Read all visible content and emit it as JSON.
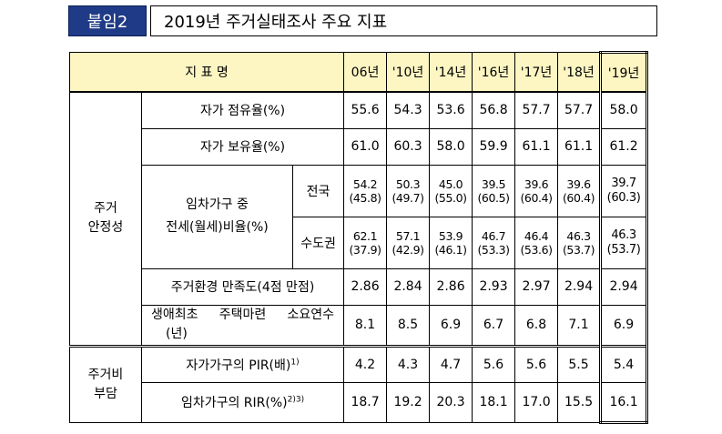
{
  "header": {
    "badge": "붙임2",
    "title": "2019년 주거실태조사 주요 지표"
  },
  "table": {
    "head_label": "지 표 명",
    "years": [
      "06년",
      "'10년",
      "'14년",
      "'16년",
      "'17년",
      "'18년",
      "'19년"
    ],
    "groups": {
      "stability": "주거\n안정성",
      "burden": "주거비\n부담"
    },
    "rows": {
      "own_occupancy": {
        "label": "자가 점유율(%)",
        "values": [
          "55.6",
          "54.3",
          "53.6",
          "56.8",
          "57.7",
          "57.7",
          "58.0"
        ]
      },
      "own_possession": {
        "label": "자가 보유율(%)",
        "values": [
          "61.0",
          "60.3",
          "58.0",
          "59.9",
          "61.1",
          "61.1",
          "61.2"
        ]
      },
      "rent_ratio": {
        "label_line1": "임차가구 중",
        "label_line2": "전세(월세)비율(%)",
        "national": {
          "label": "전국",
          "top": [
            "54.2",
            "50.3",
            "45.0",
            "39.5",
            "39.6",
            "39.6",
            "39.7"
          ],
          "bottom": [
            "(45.8)",
            "(49.7)",
            "(55.0)",
            "(60.5)",
            "(60.4)",
            "(60.4)",
            "(60.3)"
          ]
        },
        "capital": {
          "label": "수도권",
          "top": [
            "62.1",
            "57.1",
            "53.9",
            "46.7",
            "46.4",
            "46.3",
            "46.3"
          ],
          "bottom": [
            "(37.9)",
            "(42.9)",
            "(46.1)",
            "(53.3)",
            "(53.6)",
            "(53.7)",
            "(53.7)"
          ]
        }
      },
      "satisfaction": {
        "label": "주거환경 만족도(4점 만점)",
        "values": [
          "2.86",
          "2.84",
          "2.86",
          "2.93",
          "2.97",
          "2.94",
          "2.94"
        ]
      },
      "first_home": {
        "label_line1": "생애최초 주택마련 소요연수",
        "label_line2": "(년)",
        "values": [
          "8.1",
          "8.5",
          "6.9",
          "6.7",
          "6.8",
          "7.1",
          "6.9"
        ]
      },
      "pir": {
        "label": "자가가구의 PIR(배)",
        "sup": "1)",
        "values": [
          "4.2",
          "4.3",
          "4.7",
          "5.6",
          "5.6",
          "5.5",
          "5.4"
        ]
      },
      "rir": {
        "label": "임차가구의 RIR(%)",
        "sup": "2)3)",
        "values": [
          "18.7",
          "19.2",
          "20.3",
          "18.1",
          "17.0",
          "15.5",
          "16.1"
        ]
      }
    }
  }
}
